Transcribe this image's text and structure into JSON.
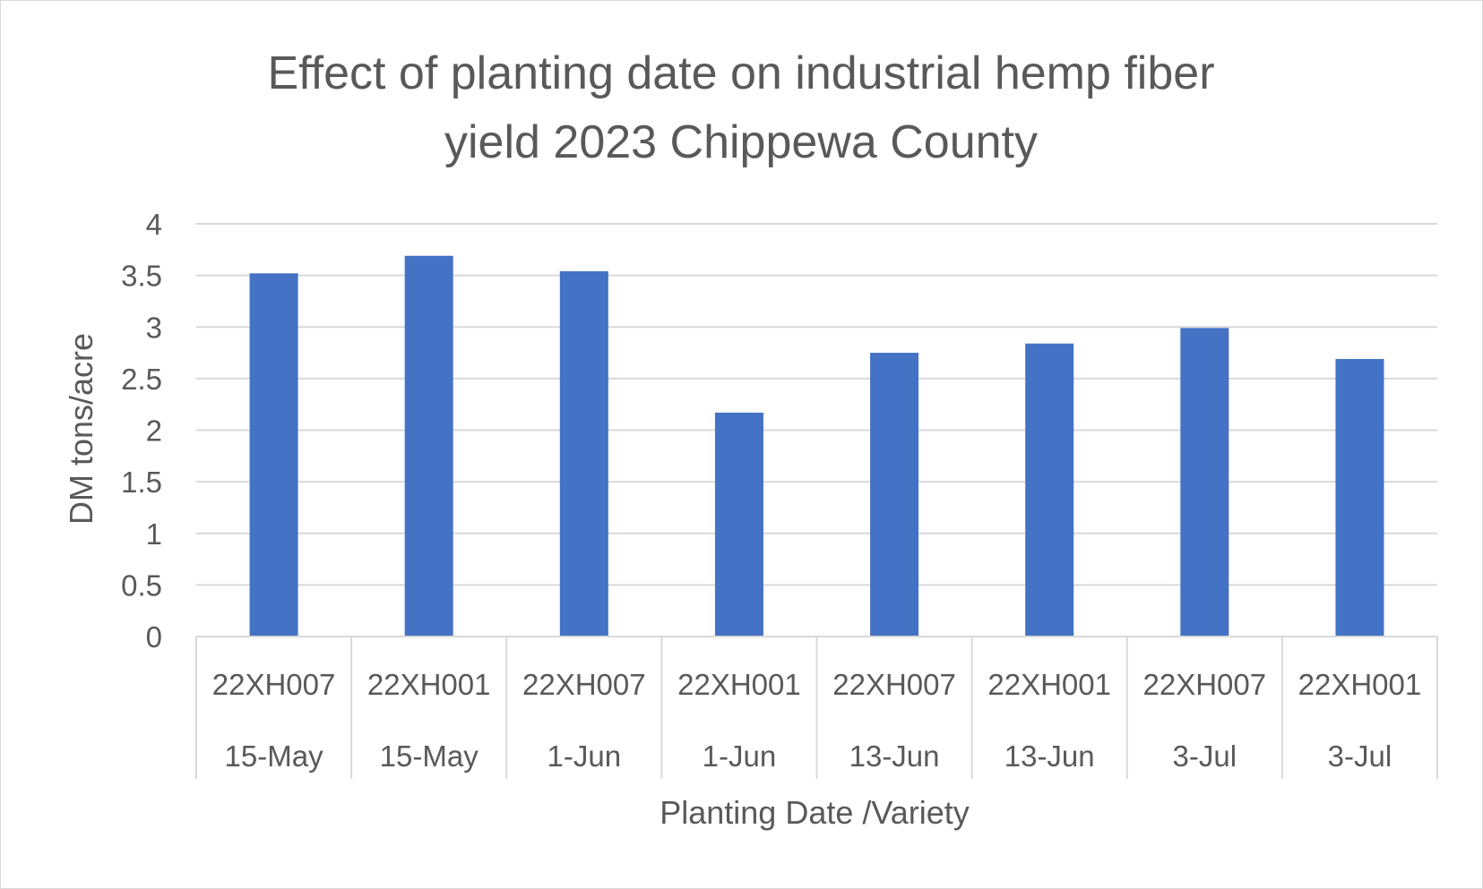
{
  "chart_data": {
    "type": "bar",
    "title_lines": [
      "Effect of planting date on industrial hemp fiber",
      "yield 2023 Chippewa County"
    ],
    "xlabel": "Planting Date /Variety",
    "ylabel": "DM tons/acre",
    "ylim": [
      0,
      4
    ],
    "yticks": [
      "0",
      "0.5",
      "1",
      "1.5",
      "2",
      "2.5",
      "3",
      "3.5",
      "4"
    ],
    "grid": true,
    "bar_color": "#4472c4",
    "categories": [
      {
        "variety": "22XH007",
        "date": "15-May"
      },
      {
        "variety": "22XH001",
        "date": "15-May"
      },
      {
        "variety": "22XH007",
        "date": "1-Jun"
      },
      {
        "variety": "22XH001",
        "date": "1-Jun"
      },
      {
        "variety": "22XH007",
        "date": "13-Jun"
      },
      {
        "variety": "22XH001",
        "date": "13-Jun"
      },
      {
        "variety": "22XH007",
        "date": "3-Jul"
      },
      {
        "variety": "22XH001",
        "date": "3-Jul"
      }
    ],
    "values": [
      3.52,
      3.69,
      3.54,
      2.17,
      2.75,
      2.84,
      2.99,
      2.69
    ]
  }
}
